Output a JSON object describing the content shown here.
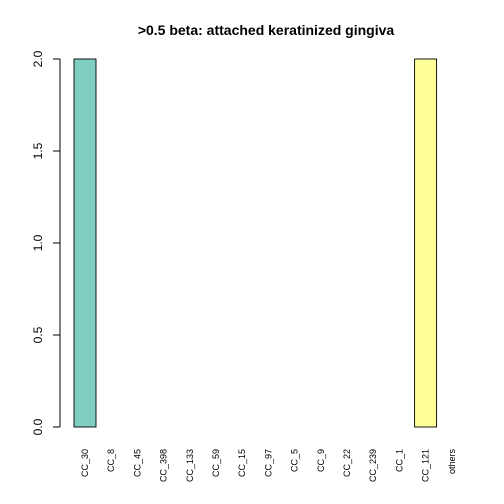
{
  "chart_data": {
    "type": "bar",
    "title": ">0.5 beta:  attached keratinized gingiva",
    "xlabel": "",
    "ylabel": "",
    "categories": [
      "CC_30",
      "CC_8",
      "CC_45",
      "CC_398",
      "CC_133",
      "CC_59",
      "CC_15",
      "CC_97",
      "CC_5",
      "CC_9",
      "CC_22",
      "CC_239",
      "CC_1",
      "CC_121",
      "others"
    ],
    "values": [
      2,
      0,
      0,
      0,
      0,
      0,
      0,
      0,
      0,
      0,
      0,
      0,
      0,
      2,
      0
    ],
    "colors": [
      "#80CDC1",
      "#80CDC1",
      "#80CDC1",
      "#80CDC1",
      "#80CDC1",
      "#80CDC1",
      "#80CDC1",
      "#80CDC1",
      "#80CDC1",
      "#80CDC1",
      "#80CDC1",
      "#80CDC1",
      "#80CDC1",
      "#FFFF99",
      "#FFFF99"
    ],
    "ylim": [
      0,
      2
    ],
    "yticks": [
      0.0,
      0.5,
      1.0,
      1.5,
      2.0
    ],
    "ytick_labels": [
      "0.0",
      "0.5",
      "1.0",
      "1.5",
      "2.0"
    ],
    "grid": false,
    "legend": "none"
  }
}
